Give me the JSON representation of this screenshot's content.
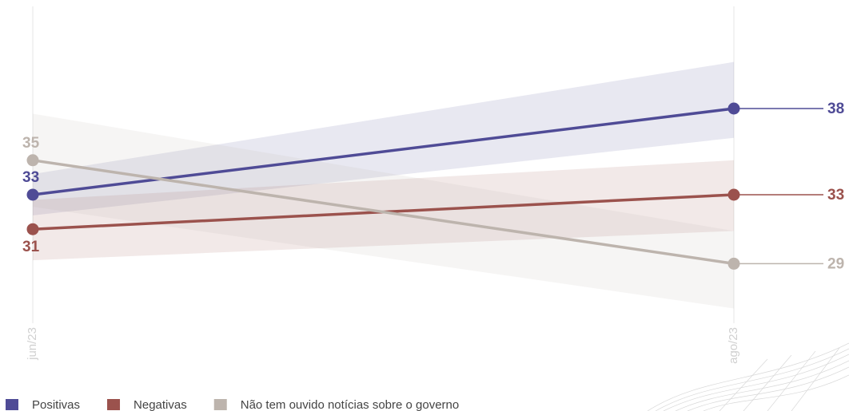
{
  "chart_data": {
    "type": "line",
    "categories": [
      "jun/23",
      "ago/23"
    ],
    "ylim": [
      25,
      44
    ],
    "series": [
      {
        "name": "Positivas",
        "color": "#4f4b96",
        "values": [
          33,
          38
        ],
        "lower": [
          31.8,
          36.3
        ],
        "upper": [
          34.2,
          40.7
        ]
      },
      {
        "name": "Negativas",
        "color": "#9b524d",
        "values": [
          31,
          33
        ],
        "lower": [
          29.2,
          30.9
        ],
        "upper": [
          32.7,
          35.0
        ]
      },
      {
        "name": "Não tem ouvido notícias sobre o governo",
        "color": "#bdb4ad",
        "values": [
          35,
          29
        ],
        "lower": [
          32.3,
          26.4
        ],
        "upper": [
          37.7,
          30.9
        ]
      }
    ]
  }
}
